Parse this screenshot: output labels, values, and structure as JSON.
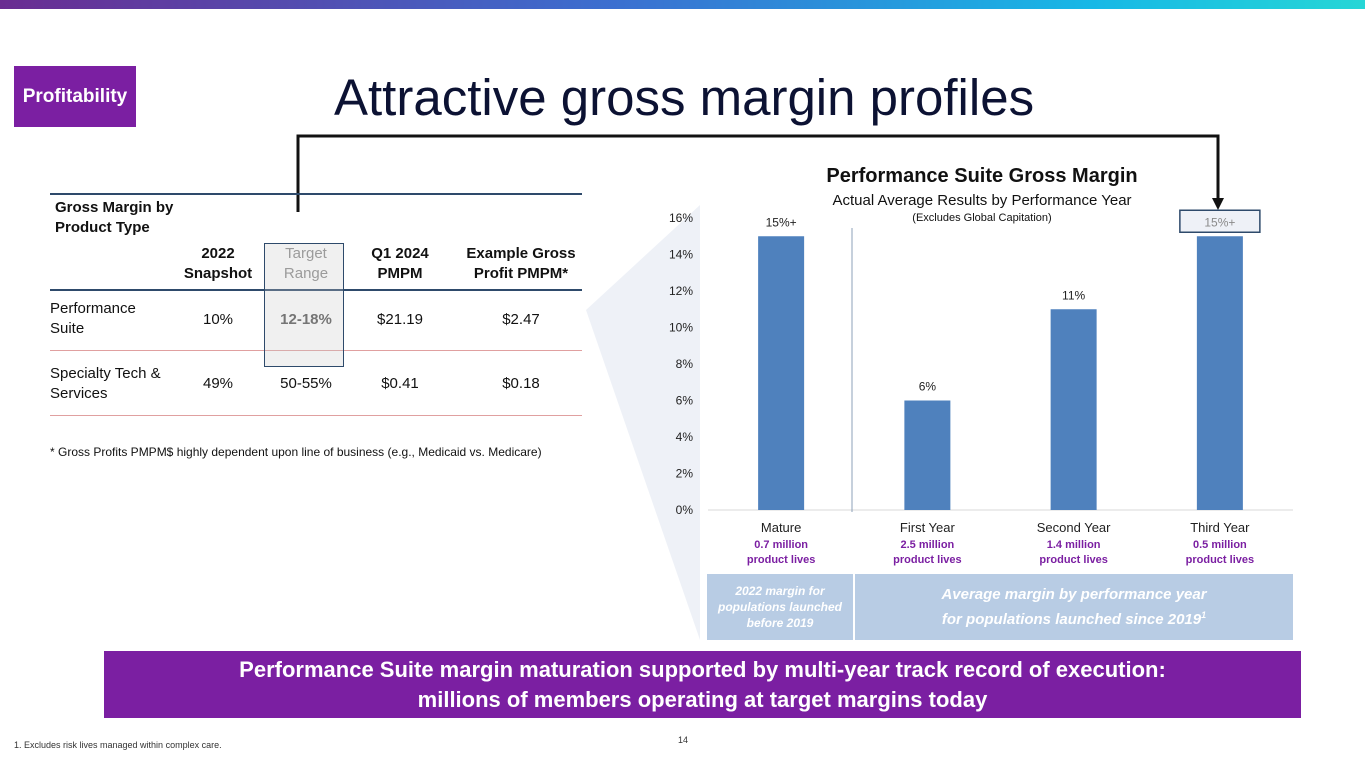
{
  "section_tag": "Profitability",
  "title": "Attractive gross margin profiles",
  "table": {
    "header_group": "Gross Margin by Product Type",
    "columns": [
      "2022 Snapshot",
      "Target Range",
      "Q1 2024 PMPM",
      "Example Gross Profit PMPM*"
    ],
    "rows": [
      {
        "label": "Performance Suite",
        "values": [
          "10%",
          "12-18%",
          "$21.19",
          "$2.47"
        ]
      },
      {
        "label": "Specialty Tech & Services",
        "values": [
          "49%",
          "50-55%",
          "$0.41",
          "$0.18"
        ]
      }
    ],
    "note": "* Gross Profits PMPM$ highly dependent upon line of business (e.g., Medicaid vs. Medicare)"
  },
  "chart_data": {
    "type": "bar",
    "title": "Performance Suite Gross Margin",
    "subtitle": "Actual Average Results by Performance Year",
    "subtitle2": "(Excludes Global Capitation)",
    "categories": [
      "Mature",
      "First Year",
      "Second Year",
      "Third Year"
    ],
    "category_subtitles": [
      "0.7 million product lives",
      "2.5 million product lives",
      "1.4 million product lives",
      "0.5 million product lives"
    ],
    "values": [
      15,
      6,
      11,
      15
    ],
    "data_labels": [
      "15%+",
      "6%",
      "11%",
      "15%+"
    ],
    "ylim": [
      0,
      16
    ],
    "yticks": [
      "0%",
      "2%",
      "4%",
      "6%",
      "8%",
      "10%",
      "12%",
      "14%",
      "16%"
    ],
    "bar_color": "#4f81bd",
    "grid": false
  },
  "legend_boxes": {
    "left": "2022 margin for populations launched before 2019",
    "right_line1": "Average margin by performance year",
    "right_line2": "for populations launched since 2019",
    "right_sup": "1"
  },
  "banner": {
    "line1": "Performance Suite margin maturation supported by multi-year track record of execution:",
    "line2": "millions of members operating at target margins today"
  },
  "footnote": "1.     Excludes risk lives managed within complex care.",
  "page_number": "14",
  "colors": {
    "purple": "#7b1fa2",
    "navy": "#0c1233",
    "bar": "#4f81bd",
    "legend_bg": "#b8cce4"
  }
}
